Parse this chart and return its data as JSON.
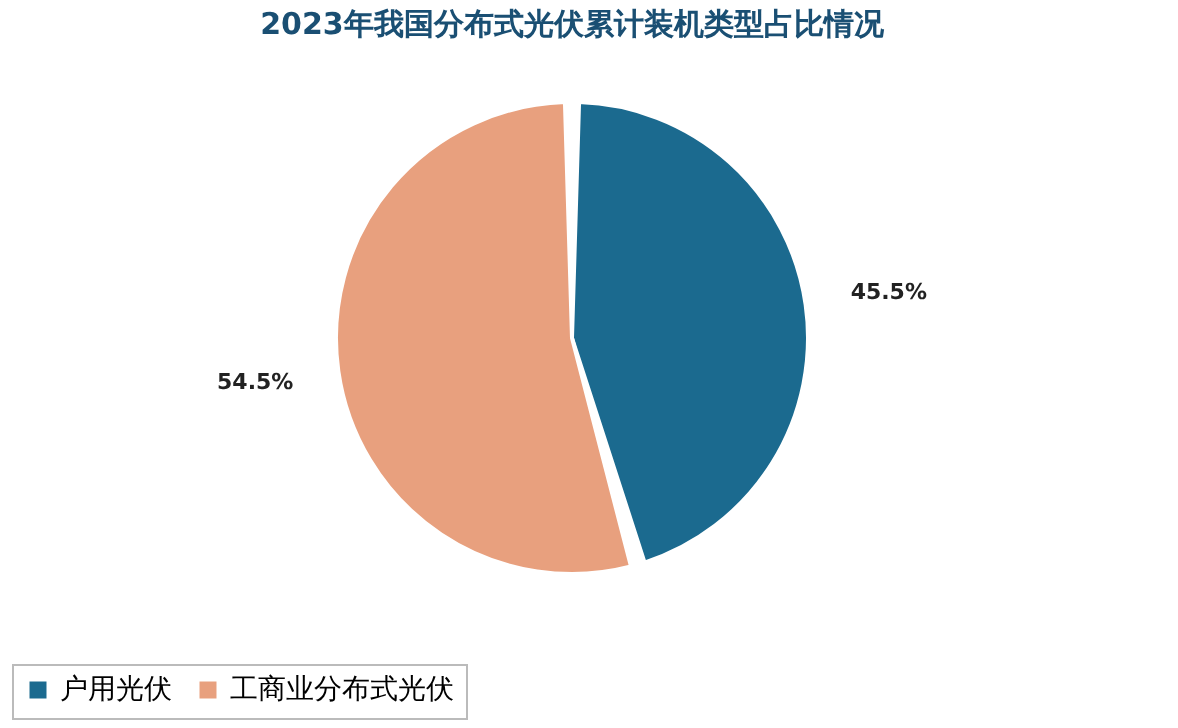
{
  "chart_data": {
    "type": "pie",
    "title": "2023年我国分布式光伏累计装机类型占比情况",
    "categories": [
      "户用光伏",
      "工商业分布式光伏"
    ],
    "values": [
      45.5,
      54.5
    ],
    "colors": [
      "#1b6a8f",
      "#e8a07e"
    ],
    "value_labels": [
      "45.5%",
      "54.5%"
    ],
    "legend": "bottom"
  }
}
